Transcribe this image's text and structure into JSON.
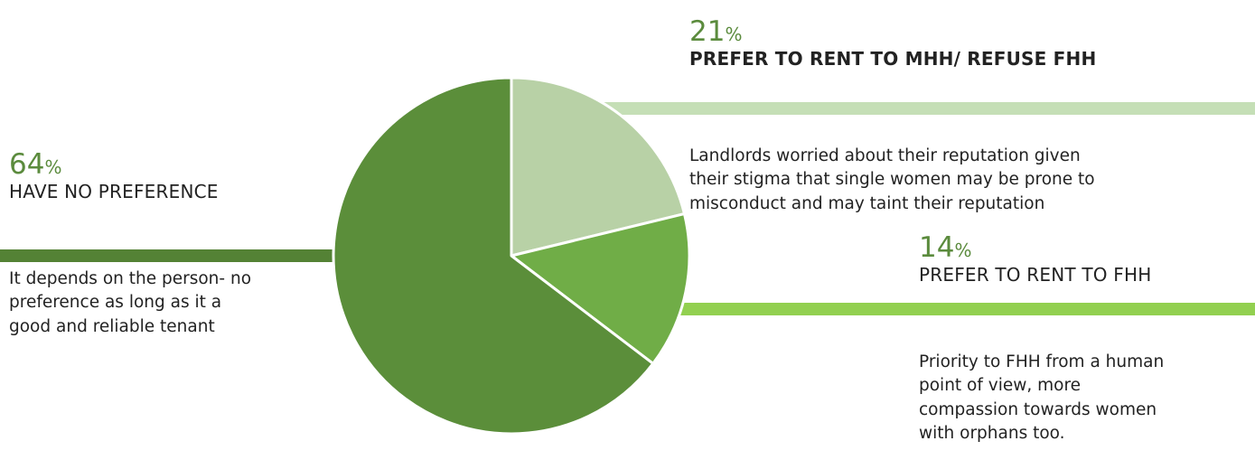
{
  "chart_data": {
    "type": "pie",
    "slices": [
      {
        "label": "PREFER TO RENT TO MHH/ REFUSE FHH",
        "value": 21,
        "color": "#b8d1a6"
      },
      {
        "label": "PREFER TO RENT TO FHH",
        "value": 14,
        "color": "#70ad47"
      },
      {
        "label": "HAVE NO PREFERENCE",
        "value": 64,
        "color": "#5b8e3a"
      }
    ],
    "start_angle_deg": 0,
    "direction": "clockwise",
    "slice_border_color": "#ffffff",
    "callout_colors": {
      "no_preference": "#548235",
      "mhh": "#c5dfb6",
      "fhh": "#92d050"
    }
  },
  "labels": {
    "mhh": {
      "pct_value": "21",
      "pct_sign": "%",
      "heading": "PREFER TO RENT TO MHH/ REFUSE FHH",
      "lines": [
        "Landlords worried about their reputation given",
        "their stigma that single women may be prone to",
        "misconduct and may taint their reputation"
      ]
    },
    "none": {
      "pct_value": "64",
      "pct_sign": "%",
      "heading": "HAVE NO PREFERENCE",
      "lines": [
        "It depends on the person- no",
        "preference as long as it a",
        "good and reliable tenant"
      ]
    },
    "fhh": {
      "pct_value": "14",
      "pct_sign": "%",
      "heading": "PREFER TO RENT TO FHH",
      "lines": [
        "Priority to FHH from a human",
        "point of view, more",
        "compassion towards women",
        "with orphans too."
      ]
    }
  }
}
